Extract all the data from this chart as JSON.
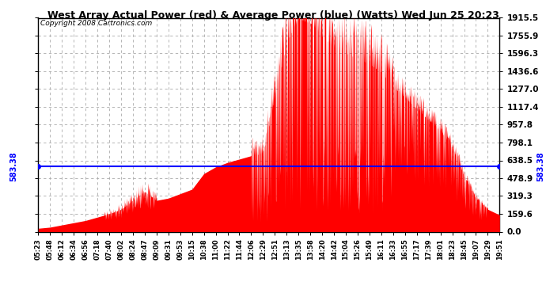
{
  "title": "West Array Actual Power (red) & Average Power (blue) (Watts) Wed Jun 25 20:23",
  "copyright": "Copyright 2008 Cartronics.com",
  "avg_power": 583.38,
  "y_max": 1915.5,
  "y_min": 0.0,
  "y_ticks": [
    0.0,
    159.6,
    319.3,
    478.9,
    638.5,
    798.1,
    957.8,
    1117.4,
    1277.0,
    1436.6,
    1596.3,
    1755.9,
    1915.5
  ],
  "x_labels": [
    "05:23",
    "05:48",
    "06:12",
    "06:34",
    "06:56",
    "07:18",
    "07:40",
    "08:02",
    "08:24",
    "08:47",
    "09:09",
    "09:31",
    "09:53",
    "10:15",
    "10:38",
    "11:00",
    "11:22",
    "11:44",
    "12:06",
    "12:29",
    "12:51",
    "13:13",
    "13:35",
    "13:58",
    "14:20",
    "14:42",
    "15:04",
    "15:26",
    "15:49",
    "16:11",
    "16:33",
    "16:55",
    "17:17",
    "17:39",
    "18:01",
    "18:23",
    "18:45",
    "19:07",
    "19:29",
    "19:51"
  ],
  "power_values": [
    30,
    40,
    60,
    80,
    100,
    130,
    160,
    200,
    280,
    360,
    280,
    300,
    340,
    380,
    520,
    580,
    620,
    650,
    680,
    700,
    1200,
    1700,
    1900,
    1870,
    1750,
    1650,
    1600,
    1550,
    1500,
    1430,
    1300,
    1200,
    1100,
    1000,
    900,
    750,
    500,
    300,
    200,
    150
  ],
  "bg_color": "#ffffff",
  "plot_bg_color": "#ffffff",
  "grid_color": "#aaaaaa",
  "red_color": "#ff0000",
  "blue_color": "#0000ff",
  "border_color": "#000000"
}
